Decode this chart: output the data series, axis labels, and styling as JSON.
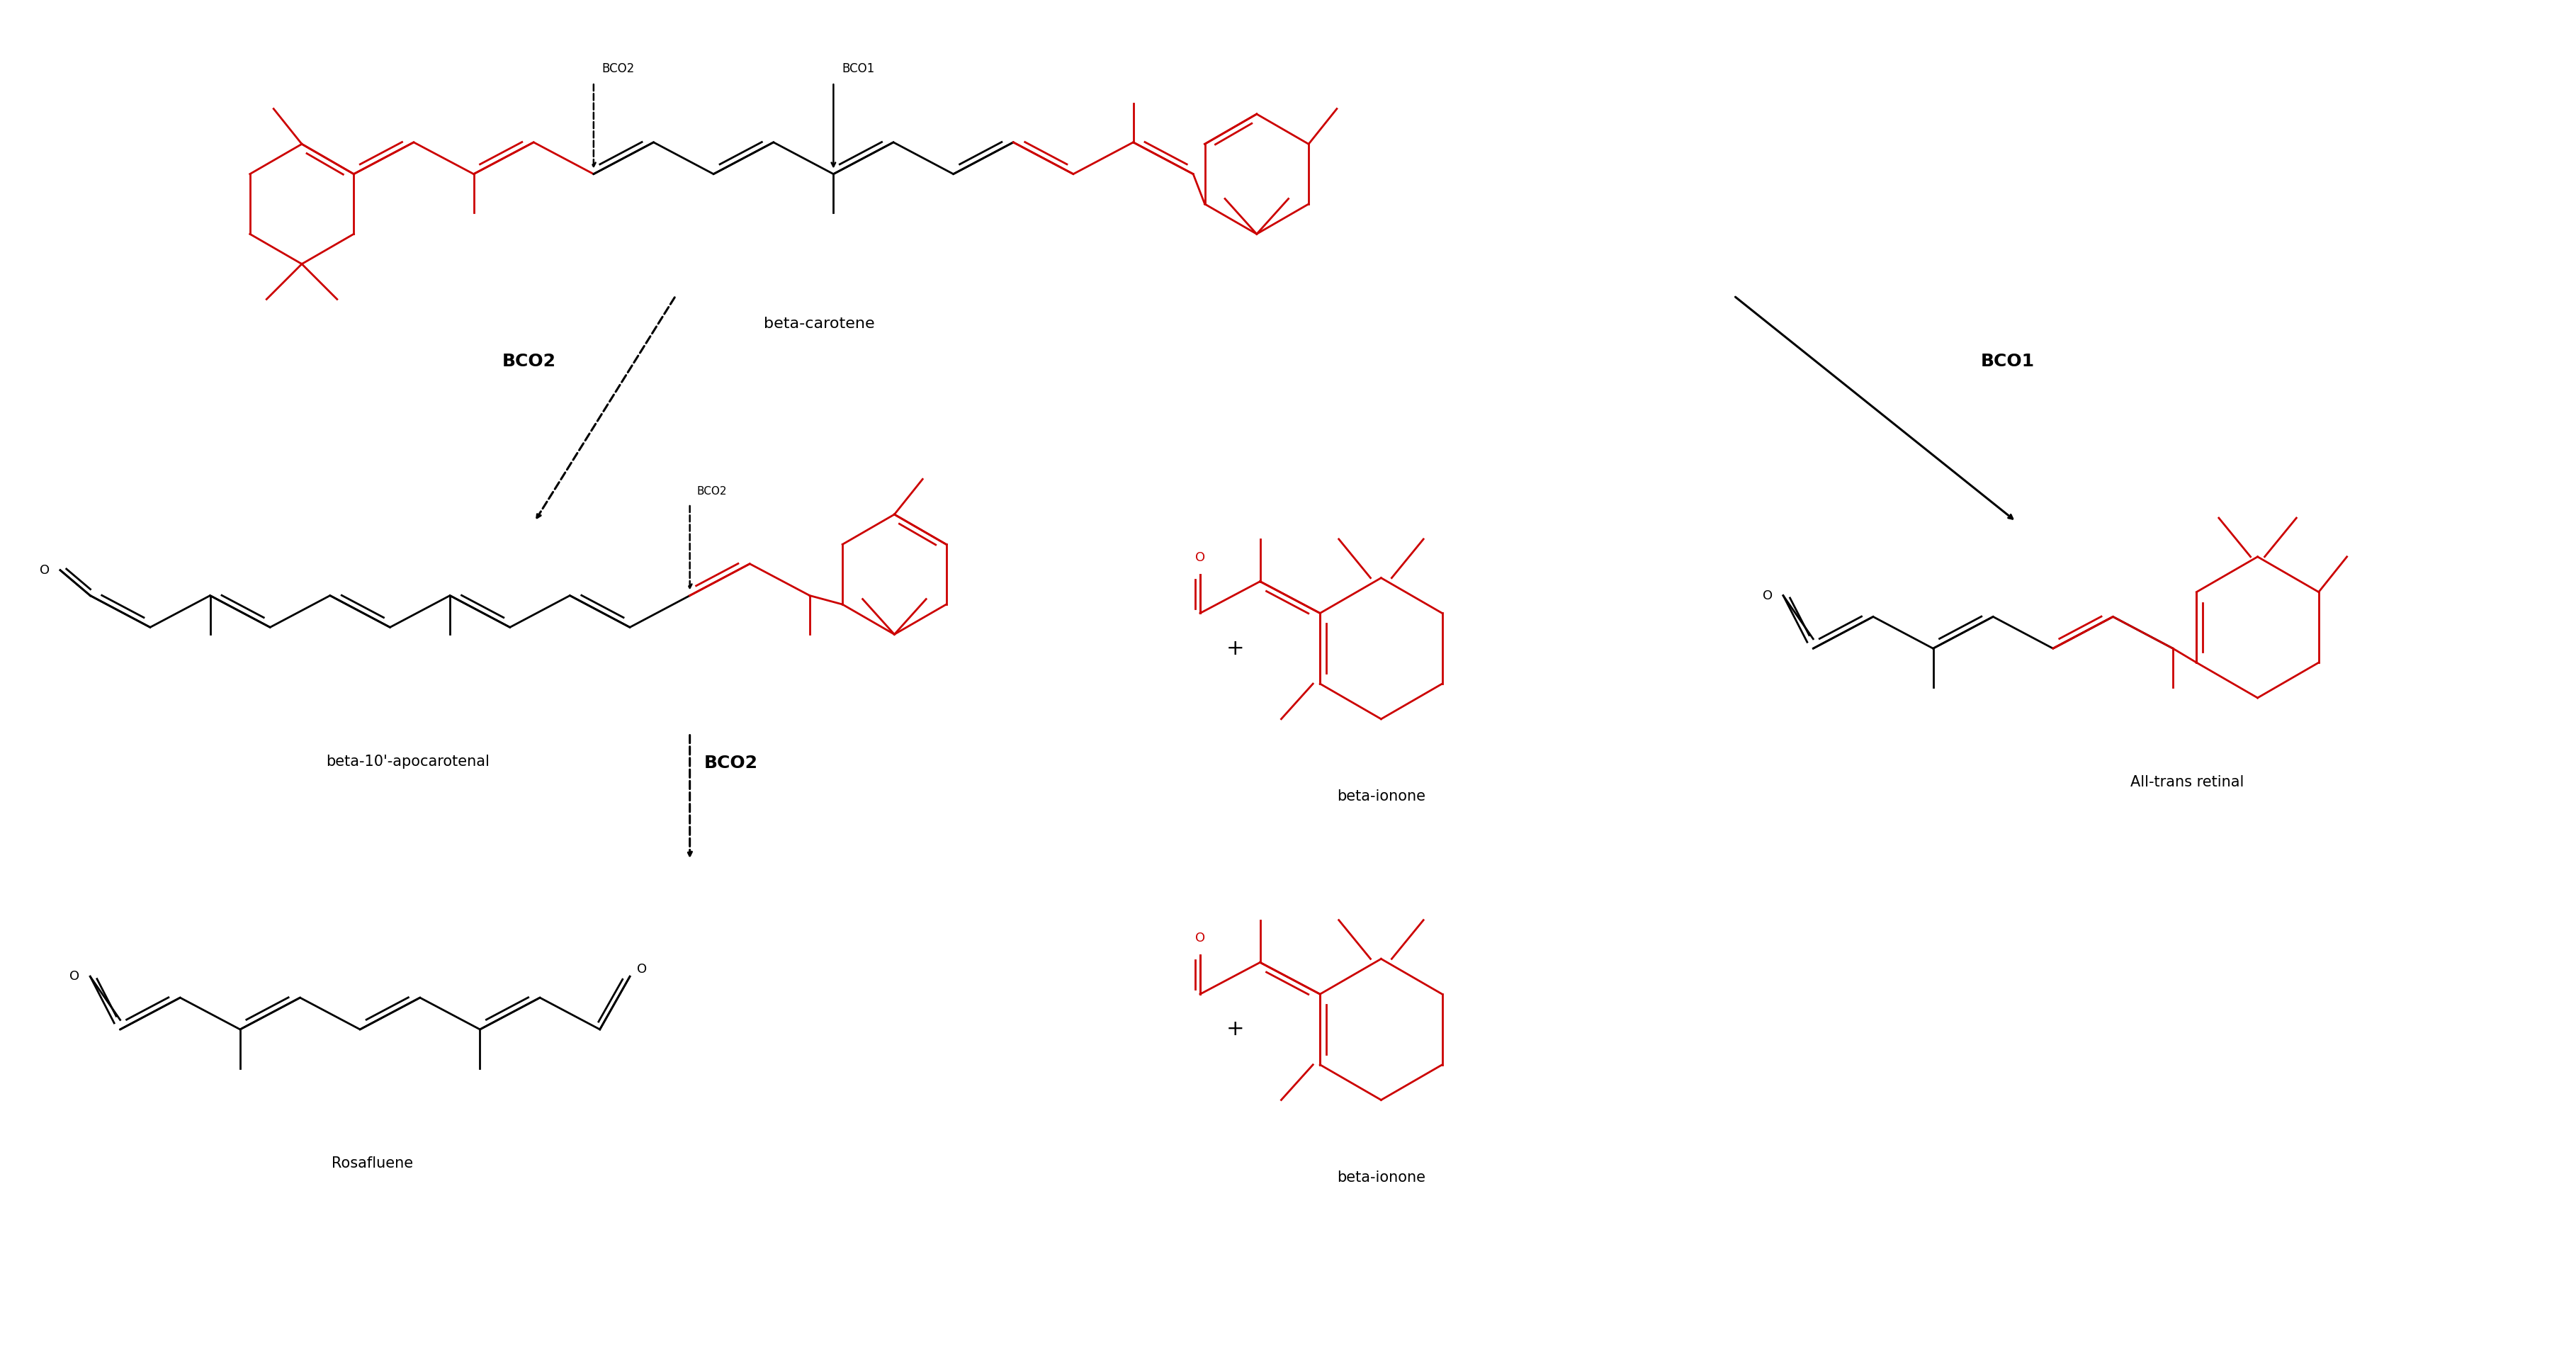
{
  "background_color": "#ffffff",
  "red_color": "#cc0000",
  "black_color": "#000000",
  "fig_width": 36.36,
  "fig_height": 19.35,
  "lw": 2.0,
  "labels": {
    "beta_carotene": "beta-carotene",
    "bco2_top": "BCO2",
    "bco1_top": "BCO1",
    "bco2_mid_label": "BCO2",
    "bco2_left_label": "BCO2",
    "bco1_right_label": "BCO1",
    "bco2_bottom_label": "BCO2",
    "beta10_apocarotenal": "beta-10'-apocarotenal",
    "beta_ionone1": "beta-ionone",
    "all_trans_retinal": "All-trans retinal",
    "rosafluene": "Rosafluene",
    "beta_ionone2": "beta-ionone",
    "plus": "+"
  }
}
